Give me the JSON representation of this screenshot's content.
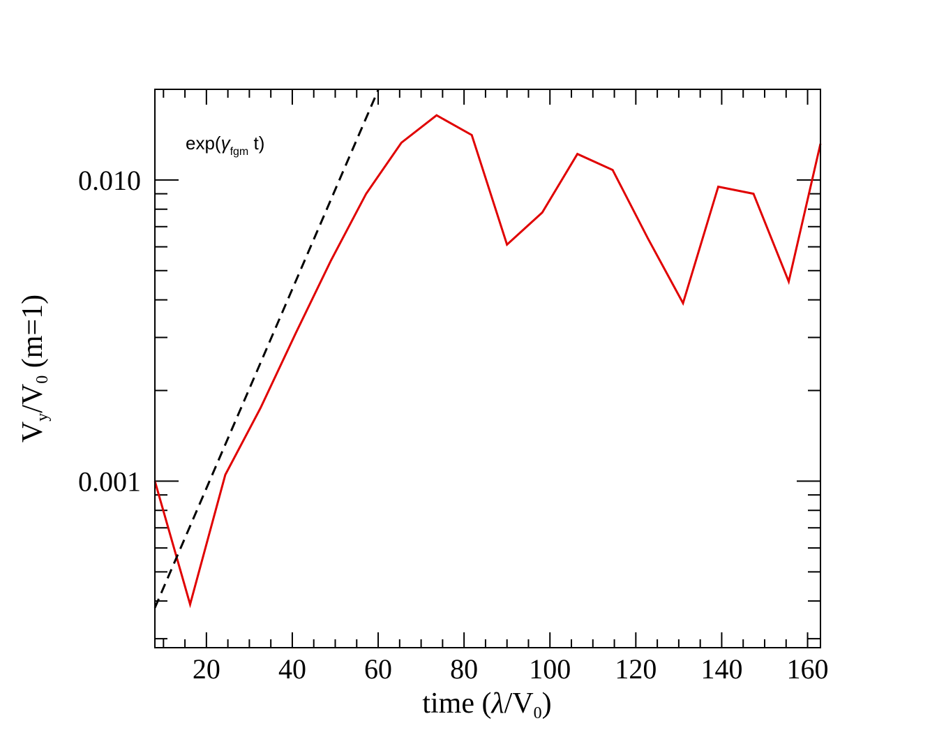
{
  "chart_data": {
    "type": "line",
    "x_scale": "linear",
    "y_scale": "log",
    "xlim": [
      8,
      163
    ],
    "ylim": [
      0.00028,
      0.02
    ],
    "x_ticks": [
      20,
      40,
      60,
      80,
      100,
      120,
      140,
      160
    ],
    "x_tick_labels": [
      "20",
      "40",
      "60",
      "80",
      "100",
      "120",
      "140",
      "160"
    ],
    "y_ticks": [
      0.001,
      0.01
    ],
    "y_tick_labels": [
      "0.001",
      "0.010"
    ],
    "xlabel": {
      "prefix": "time (",
      "symbol": "λ",
      "mid": "/V",
      "sub": "0",
      "suffix": ")"
    },
    "ylabel": {
      "v": "V",
      "sub1": "y",
      "mid": "/V",
      "sub2": "0",
      "suffix": " (m=1)"
    },
    "annotation": {
      "prefix": "exp(",
      "symbol": "γ",
      "sub": "fgm",
      "suffix": " t)"
    },
    "grid": false,
    "series": [
      {
        "style": "solid",
        "color": "#e00000",
        "x": [
          8,
          16.2,
          24.4,
          32.6,
          40.8,
          49,
          57.2,
          65.4,
          73.6,
          81.8,
          90,
          98.2,
          106.4,
          114.6,
          122.8,
          131,
          139.2,
          147.4,
          155.6,
          163
        ],
        "y": [
          0.001,
          0.00039,
          0.00105,
          0.00175,
          0.0031,
          0.0054,
          0.009,
          0.0133,
          0.0164,
          0.0141,
          0.0061,
          0.0078,
          0.0122,
          0.0108,
          0.0064,
          0.0039,
          0.0095,
          0.009,
          0.0046,
          0.0132
        ]
      },
      {
        "style": "dashed",
        "color": "#000000",
        "x": [
          8,
          60
        ],
        "y": [
          0.00038,
          0.0199
        ]
      }
    ]
  }
}
